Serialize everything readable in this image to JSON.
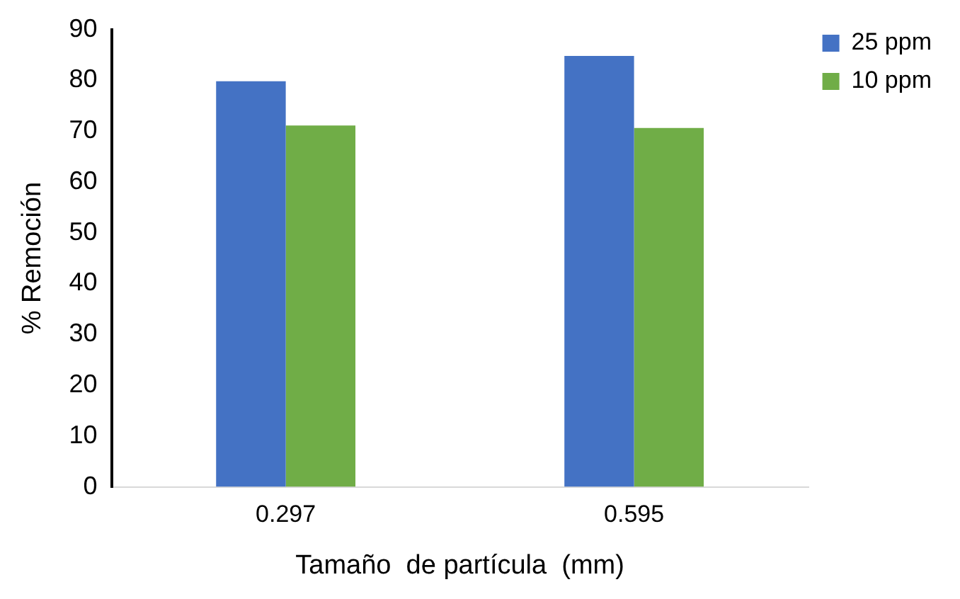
{
  "chart_data": {
    "type": "bar",
    "xlabel": "Tamaño  de partícula  (mm)",
    "ylabel": "% Remoción",
    "categories": [
      "0.297",
      "0.595"
    ],
    "series": [
      {
        "name": "25 ppm",
        "color": "#4472c4",
        "values": [
          79.8,
          84.8
        ]
      },
      {
        "name": "10 ppm",
        "color": "#70ad47",
        "values": [
          71.1,
          70.6
        ]
      }
    ],
    "ylim": [
      0,
      90
    ],
    "yticks": [
      0,
      10,
      20,
      30,
      40,
      50,
      60,
      70,
      80,
      90
    ],
    "grid": false,
    "legend": "top right"
  }
}
